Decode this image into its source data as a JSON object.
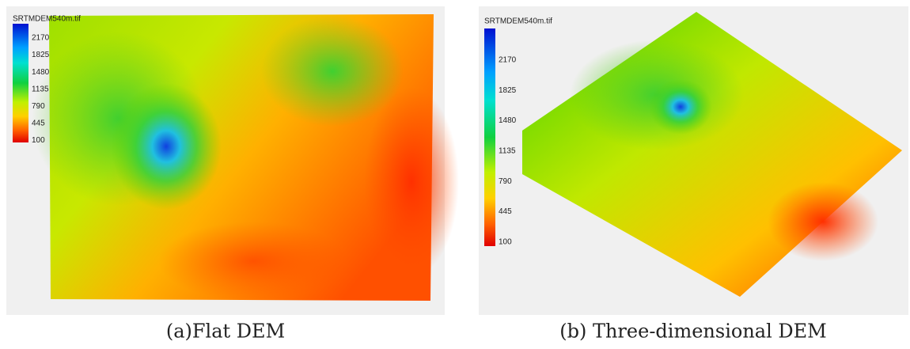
{
  "panels": [
    {
      "title": "SRTMDEM540m.tif",
      "legend": [
        2170,
        1825,
        1480,
        1135,
        790,
        445,
        100
      ],
      "caption": "(a)Flat DEM"
    },
    {
      "title": "SRTMDEM540m.tif",
      "legend": [
        2170,
        1825,
        1480,
        1135,
        790,
        445,
        100
      ],
      "caption": "(b) Three-dimensional DEM"
    }
  ]
}
